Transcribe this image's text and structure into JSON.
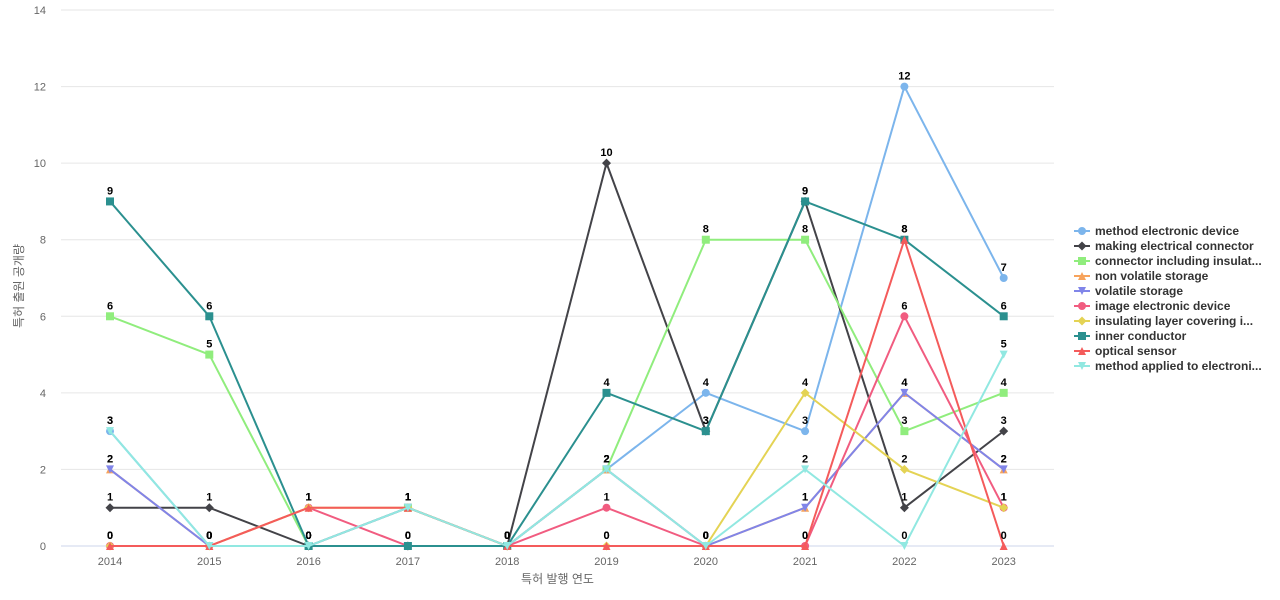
{
  "chart_data": {
    "type": "line",
    "title": "",
    "xlabel": "특허 발행 연도",
    "ylabel": "특허 출원 공개량",
    "ylim": [
      0,
      14
    ],
    "yticks": [
      0,
      2,
      4,
      6,
      8,
      10,
      12,
      14
    ],
    "categories": [
      "2014",
      "2015",
      "2016",
      "2017",
      "2018",
      "2019",
      "2020",
      "2021",
      "2022",
      "2023"
    ],
    "grid": true,
    "legend_position": "right",
    "data_labels": true,
    "series": [
      {
        "name": "method electronic device",
        "color": "#7cb5ec",
        "marker": "circle",
        "values": [
          3,
          0,
          0,
          1,
          0,
          2,
          4,
          3,
          12,
          7
        ]
      },
      {
        "name": "making electrical connector",
        "color": "#434348",
        "marker": "diamond",
        "values": [
          1,
          1,
          0,
          0,
          0,
          10,
          3,
          9,
          1,
          3
        ]
      },
      {
        "name": "connector including insulat...",
        "color": "#90ed7d",
        "marker": "square",
        "values": [
          6,
          5,
          0,
          1,
          0,
          2,
          8,
          8,
          3,
          4
        ]
      },
      {
        "name": "non volatile storage",
        "color": "#f7a35c",
        "marker": "triangle",
        "values": [
          2,
          0,
          0,
          1,
          0,
          2,
          0,
          1,
          4,
          2
        ]
      },
      {
        "name": "volatile storage",
        "color": "#8085e9",
        "marker": "triangle-down",
        "values": [
          2,
          0,
          0,
          1,
          0,
          2,
          0,
          1,
          4,
          2
        ]
      },
      {
        "name": "image electronic device",
        "color": "#f15c80",
        "marker": "circle",
        "values": [
          0,
          0,
          1,
          0,
          0,
          1,
          0,
          0,
          6,
          1
        ]
      },
      {
        "name": "insulating layer covering i...",
        "color": "#e4d354",
        "marker": "diamond",
        "values": [
          0,
          0,
          1,
          1,
          0,
          0,
          0,
          4,
          2,
          1
        ]
      },
      {
        "name": "inner conductor",
        "color": "#2b908f",
        "marker": "square",
        "values": [
          9,
          6,
          0,
          0,
          0,
          4,
          3,
          9,
          8,
          6
        ]
      },
      {
        "name": "optical sensor",
        "color": "#f45b5b",
        "marker": "triangle",
        "values": [
          0,
          0,
          1,
          1,
          0,
          0,
          0,
          0,
          8,
          0
        ]
      },
      {
        "name": "method applied to electroni...",
        "color": "#91e8e1",
        "marker": "triangle-down",
        "values": [
          3,
          0,
          0,
          1,
          0,
          2,
          0,
          2,
          0,
          5
        ]
      }
    ]
  }
}
